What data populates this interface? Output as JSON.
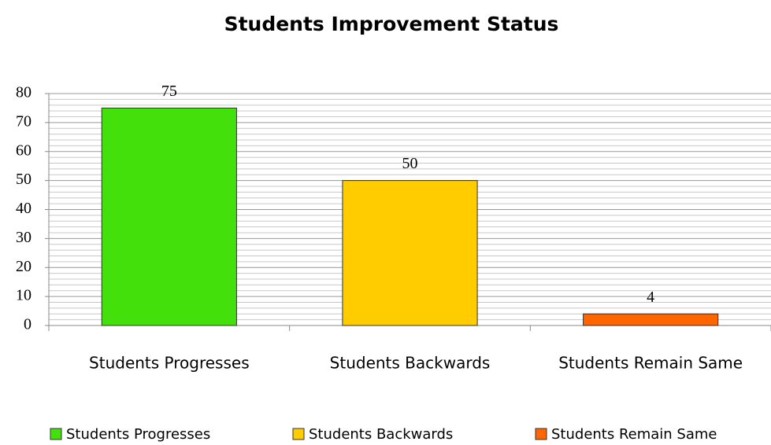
{
  "chart_data": {
    "type": "bar",
    "title": "Students Improvement Status",
    "categories": [
      "Students Progresses",
      "Students Backwards",
      "Students Remain Same"
    ],
    "values": [
      75,
      50,
      4
    ],
    "colors": [
      "#44e00c",
      "#ffcc00",
      "#ff6600"
    ],
    "ylim": [
      0,
      80
    ],
    "yticks": [
      0,
      10,
      20,
      30,
      40,
      50,
      60,
      70,
      80
    ],
    "grid": true,
    "legend": "bottom"
  }
}
